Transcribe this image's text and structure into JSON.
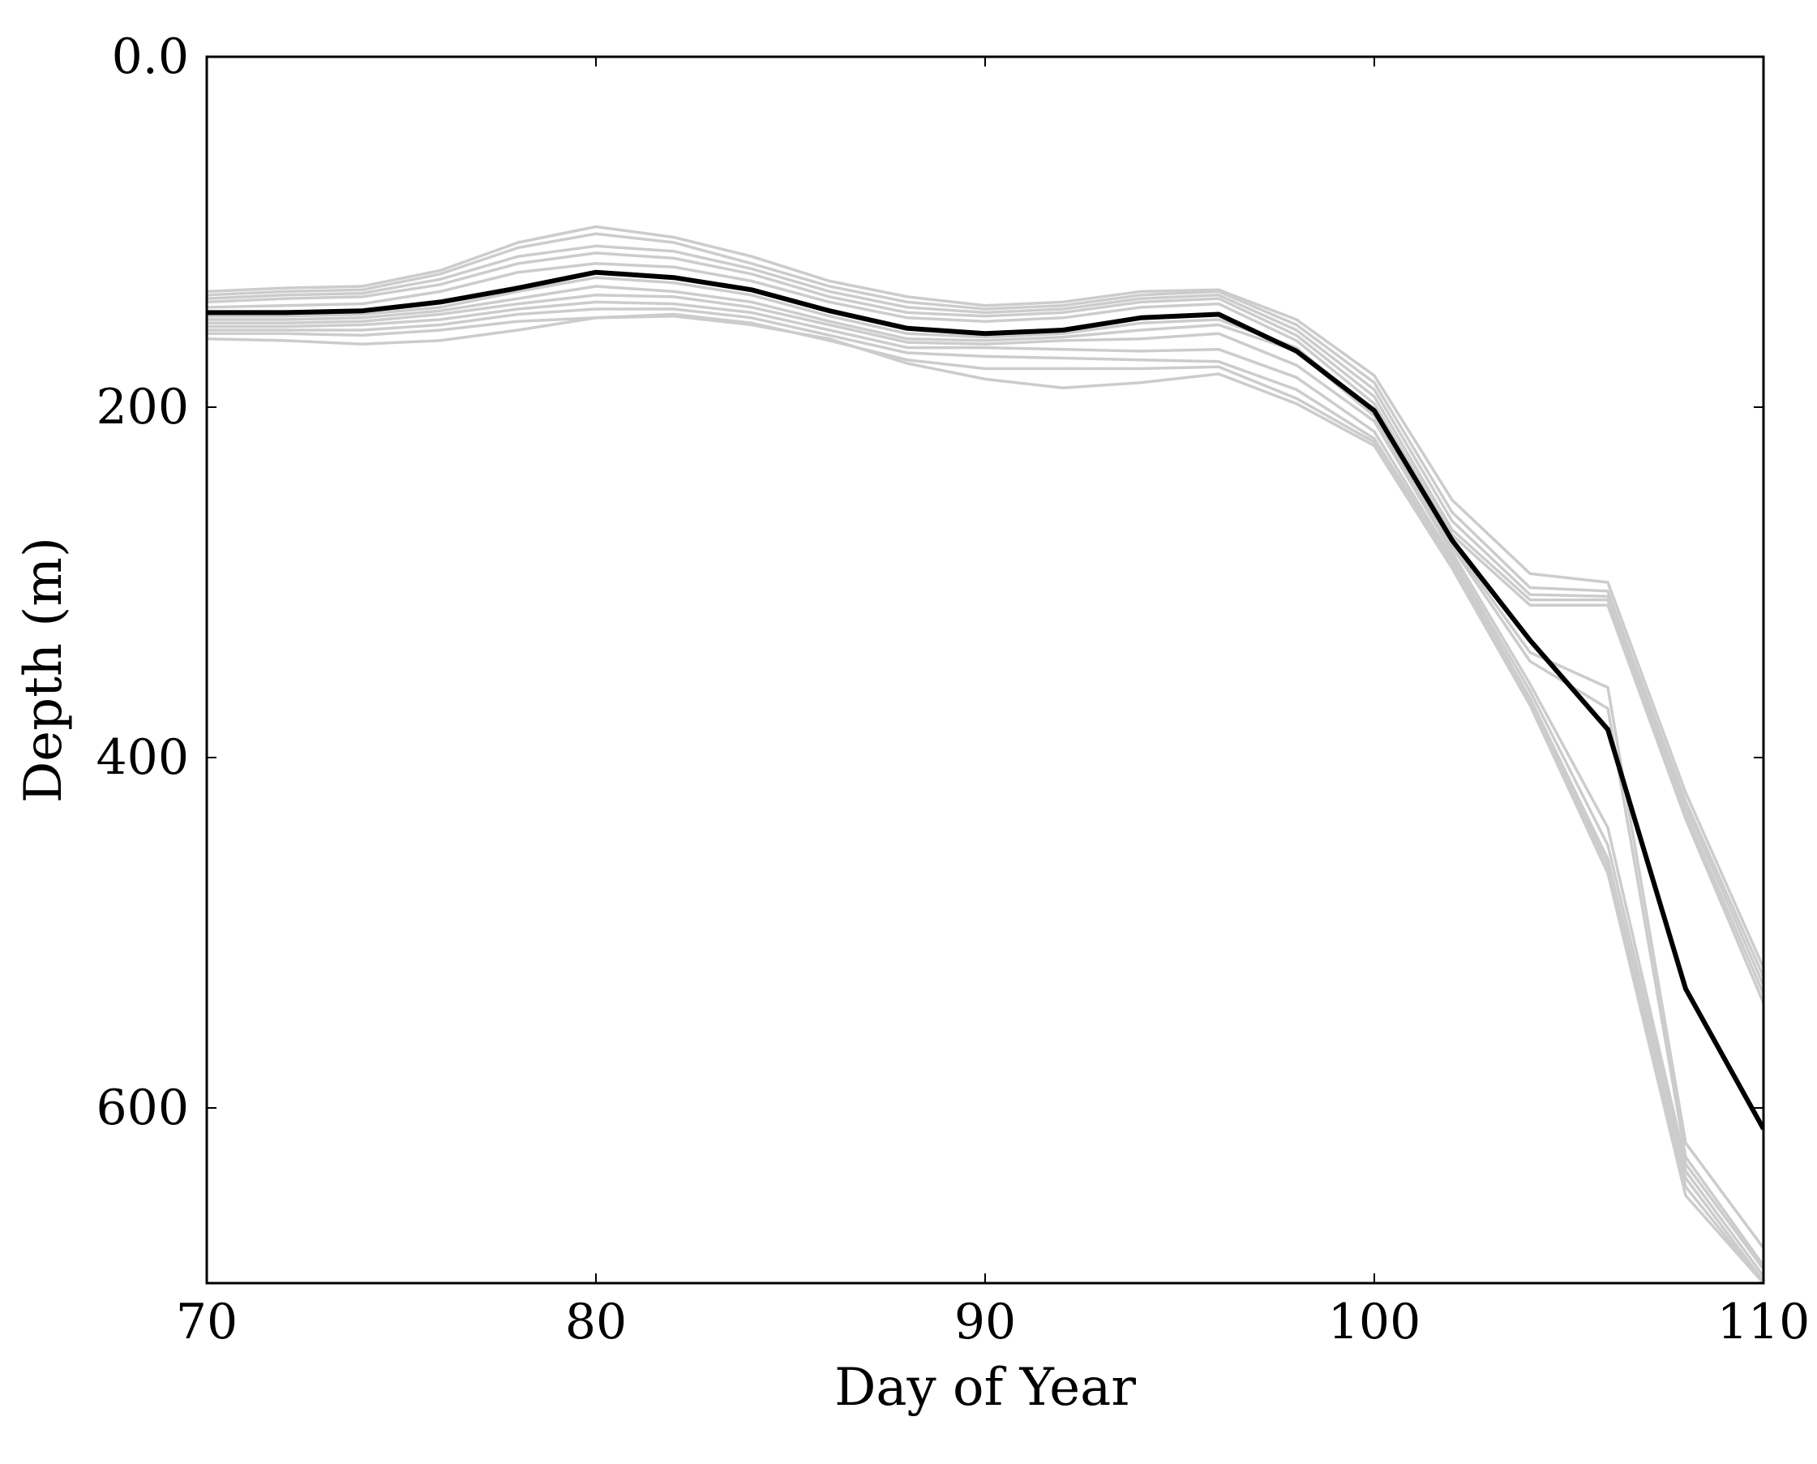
{
  "chart_data": {
    "type": "line",
    "title": "",
    "xlabel": "Day of Year",
    "ylabel": "Depth (m)",
    "xlim": [
      70,
      110
    ],
    "ylim": [
      700,
      0
    ],
    "y_inverted": true,
    "grid": false,
    "legend": "none",
    "x_ticks": [
      70,
      80,
      90,
      100,
      110
    ],
    "x_tick_labels": [
      "70",
      "80",
      "90",
      "100",
      "110"
    ],
    "y_ticks": [
      0,
      200,
      400,
      600
    ],
    "y_tick_labels": [
      "0.0",
      "200",
      "400",
      "600"
    ],
    "x": [
      70,
      72,
      74,
      76,
      78,
      80,
      82,
      84,
      86,
      88,
      90,
      92,
      94,
      96,
      98,
      100,
      102,
      104,
      106,
      108,
      110
    ],
    "colors": {
      "ensemble": "#cccccc",
      "mean": "#000000"
    },
    "series": [
      {
        "role": "mean",
        "values": [
          146,
          146,
          145,
          140,
          132,
          123,
          126,
          133,
          145,
          155,
          158,
          156,
          149,
          147,
          168,
          202,
          276,
          333,
          384,
          532,
          612
        ]
      },
      {
        "role": "ensemble",
        "values": [
          134,
          132,
          131,
          122,
          106,
          97,
          103,
          114,
          128,
          137,
          142,
          140,
          134,
          133,
          150,
          182,
          253,
          295,
          300,
          420,
          520
        ]
      },
      {
        "role": "ensemble",
        "values": [
          136,
          134,
          133,
          124,
          109,
          101,
          106,
          118,
          131,
          140,
          144,
          142,
          136,
          134,
          153,
          186,
          260,
          303,
          305,
          425,
          525
        ]
      },
      {
        "role": "ensemble",
        "values": [
          138,
          136,
          135,
          127,
          114,
          108,
          111,
          121,
          134,
          143,
          146,
          144,
          138,
          136,
          156,
          190,
          265,
          307,
          308,
          428,
          530
        ]
      },
      {
        "role": "ensemble",
        "values": [
          140,
          138,
          137,
          130,
          118,
          112,
          115,
          124,
          137,
          146,
          148,
          146,
          140,
          138,
          159,
          194,
          270,
          310,
          310,
          432,
          535
        ]
      },
      {
        "role": "ensemble",
        "values": [
          143,
          142,
          141,
          134,
          123,
          118,
          120,
          128,
          140,
          149,
          151,
          149,
          143,
          141,
          162,
          198,
          273,
          313,
          313,
          435,
          540
        ]
      },
      {
        "role": "ensemble",
        "values": [
          148,
          148,
          147,
          143,
          134,
          126,
          129,
          136,
          148,
          158,
          160,
          158,
          152,
          150,
          166,
          203,
          278,
          340,
          360,
          620,
          680
        ]
      },
      {
        "role": "ensemble",
        "values": [
          150,
          150,
          149,
          145,
          138,
          131,
          134,
          140,
          151,
          161,
          162,
          160,
          156,
          153,
          168,
          205,
          280,
          345,
          372,
          628,
          690
        ]
      },
      {
        "role": "ensemble",
        "values": [
          152,
          152,
          151,
          147,
          141,
          136,
          137,
          143,
          153,
          163,
          164,
          162,
          161,
          158,
          176,
          208,
          283,
          358,
          440,
          632,
          692
        ]
      },
      {
        "role": "ensemble",
        "values": [
          154,
          154,
          153,
          150,
          144,
          140,
          141,
          146,
          156,
          166,
          166,
          167,
          168,
          167,
          183,
          214,
          286,
          362,
          450,
          636,
          696
        ]
      },
      {
        "role": "ensemble",
        "values": [
          156,
          156,
          156,
          153,
          147,
          144,
          144,
          149,
          159,
          169,
          171,
          172,
          173,
          174,
          190,
          218,
          288,
          366,
          458,
          640,
          699
        ]
      },
      {
        "role": "ensemble",
        "values": [
          158,
          158,
          159,
          156,
          151,
          149,
          147,
          152,
          162,
          173,
          178,
          178,
          178,
          177,
          195,
          220,
          290,
          368,
          462,
          645,
          700
        ]
      },
      {
        "role": "ensemble",
        "values": [
          161,
          162,
          164,
          162,
          156,
          149,
          148,
          153,
          161,
          175,
          184,
          189,
          186,
          181,
          198,
          222,
          292,
          370,
          466,
          650,
          700
        ]
      }
    ]
  }
}
